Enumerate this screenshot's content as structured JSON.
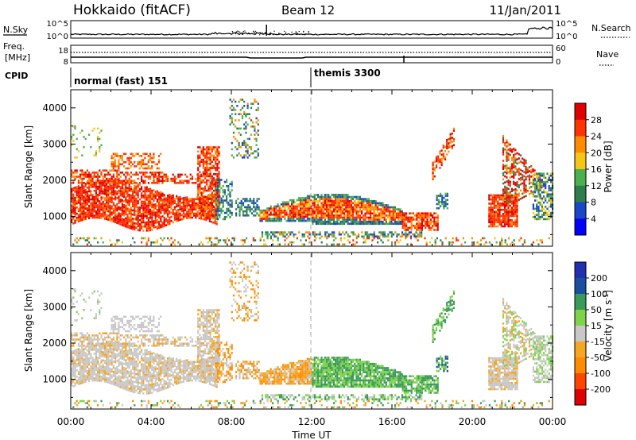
{
  "header": {
    "station": "Hokkaido (fitACF)",
    "beam": "Beam 12",
    "date": "11/Jan/2011"
  },
  "top_panels": {
    "nsky_label": "N.Sky",
    "nsky_ticks": [
      "10^5",
      "10^0"
    ],
    "nsearch_label": "N.Search",
    "nsearch_ticks": [
      "10^5",
      "10^0"
    ],
    "freq_label_1": "Freq.",
    "freq_label_2": "[MHz]",
    "freq_ticks": [
      "18",
      "8"
    ],
    "nave_label": "Nave",
    "nave_ticks": [
      "60",
      "0"
    ],
    "cpid_label": "CPID",
    "cpid_modes": [
      {
        "label": "normal (fast) 151",
        "start_ut": 0
      },
      {
        "label": "themis 3300",
        "start_ut": 12
      }
    ]
  },
  "chart_data": [
    {
      "type": "heatmap",
      "name": "power",
      "ylabel": "Slant Range [km]",
      "ylim": [
        180,
        4500
      ],
      "yticks": [
        "1000",
        "2000",
        "3000",
        "4000"
      ],
      "colorbar_label": "Power [dB]",
      "colorbar_ticks": [
        "4",
        "8",
        "12",
        "16",
        "20",
        "24",
        "28"
      ],
      "colorbar_colors": [
        "#0000ff",
        "#1a47c9",
        "#2e7d4f",
        "#4caf50",
        "#f5c518",
        "#ff8c00",
        "#ff3300",
        "#e00000"
      ],
      "colorbar_range": [
        0,
        32
      ]
    },
    {
      "type": "heatmap",
      "name": "velocity",
      "ylabel": "Slant Range [km]",
      "ylim": [
        180,
        4500
      ],
      "yticks": [
        "1000",
        "2000",
        "3000",
        "4000"
      ],
      "colorbar_label": "Velocity [m s",
      "colorbar_label_sup": "-1",
      "colorbar_label_end": "]",
      "colorbar_ticks": [
        "-200",
        "-100",
        "-50",
        "-15",
        "15",
        "50",
        "100",
        "200"
      ],
      "colorbar_colors": [
        "#e00000",
        "#ff4400",
        "#ff8c00",
        "#f5a623",
        "#c8c8c8",
        "#7ed348",
        "#3a9a5a",
        "#1a4fa0",
        "#2030b0"
      ]
    }
  ],
  "xaxis": {
    "ticks": [
      "00:00",
      "04:00",
      "08:00",
      "12:00",
      "16:00",
      "20:00",
      "00:00"
    ],
    "label": "Time UT",
    "range": [
      0,
      24
    ]
  }
}
